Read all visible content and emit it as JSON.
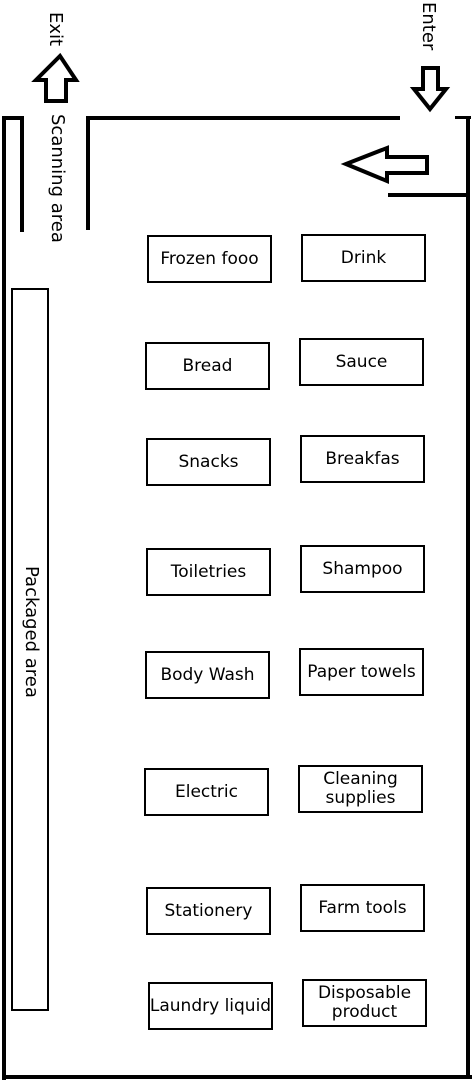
{
  "labels": {
    "exit": "Exit",
    "enter": "Enter",
    "scanning_area": "Scanning area",
    "packaged_area": "Packaged area"
  },
  "shelves": [
    {
      "label": "Frozen fooo"
    },
    {
      "label": "Drink"
    },
    {
      "label": "Bread"
    },
    {
      "label": "Sauce"
    },
    {
      "label": "Snacks"
    },
    {
      "label": "Breakfas"
    },
    {
      "label": "Toiletries"
    },
    {
      "label": "Shampoo"
    },
    {
      "label": "Body Wash"
    },
    {
      "label": "Paper towels"
    },
    {
      "label": "Electric"
    },
    {
      "label": "Cleaning supplies"
    },
    {
      "label": "Stationery"
    },
    {
      "label": "Farm tools"
    },
    {
      "label": "Laundry liquid"
    },
    {
      "label": "Disposable product"
    }
  ]
}
